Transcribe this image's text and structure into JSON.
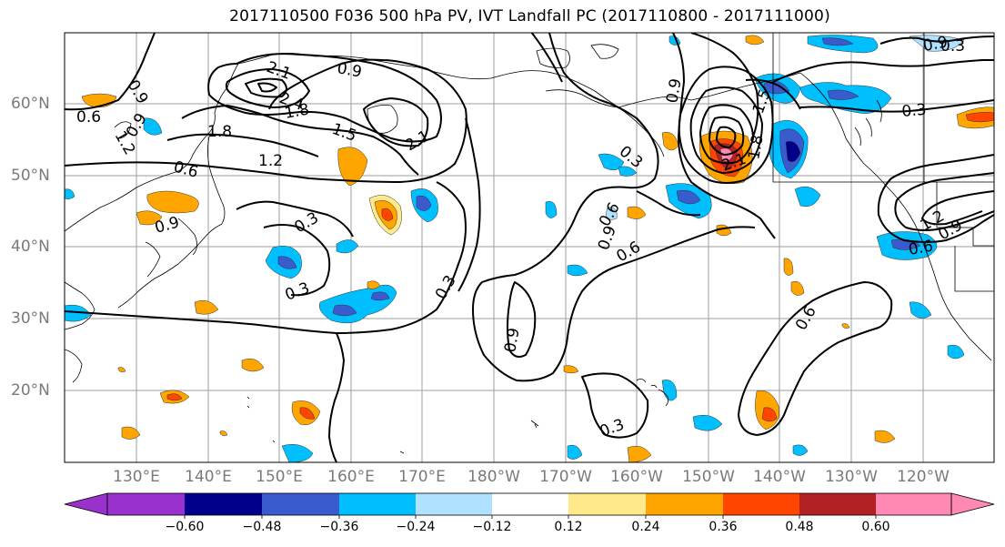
{
  "title": "2017110500 F036 500 hPa PV, IVT Landfall PC (2017110800 - 2017111000)",
  "lat_labels": [
    "60°N",
    "50°N",
    "40°N",
    "30°N",
    "20°N"
  ],
  "lon_labels": [
    "130°E",
    "140°E",
    "150°E",
    "160°E",
    "170°E",
    "180°W",
    "170°W",
    "160°W",
    "150°W",
    "140°W",
    "130°W",
    "120°W"
  ],
  "contour_labels": [
    "0.9",
    "0.6",
    "1.2",
    "0.9",
    "0.6",
    "2.1",
    "2.4",
    "1.8",
    "0.9",
    "1.8",
    "1.5",
    "2.1",
    "1.2",
    "0.3",
    "0.3",
    "0.3",
    "0.9",
    "0.6",
    "0.3",
    "0.9",
    "0.3",
    "0.6",
    "0.9",
    "1.5",
    "1.8",
    "2.1",
    "0.3",
    "0.9",
    "0.3",
    "1.2",
    "0.9",
    "0.6",
    "0.6",
    "0.9"
  ],
  "colorbar": {
    "ticks": [
      "−0.60",
      "−0.48",
      "−0.36",
      "−0.24",
      "−0.12",
      "0.12",
      "0.24",
      "0.36",
      "0.48",
      "0.60"
    ],
    "colors": [
      "#9932cc",
      "#00008b",
      "#3a5bcd",
      "#00bfff",
      "#b0e2ff",
      "#ffffff",
      "#ffe98a",
      "#ffa500",
      "#ff4500",
      "#b22222",
      "#ff88b4"
    ]
  }
}
